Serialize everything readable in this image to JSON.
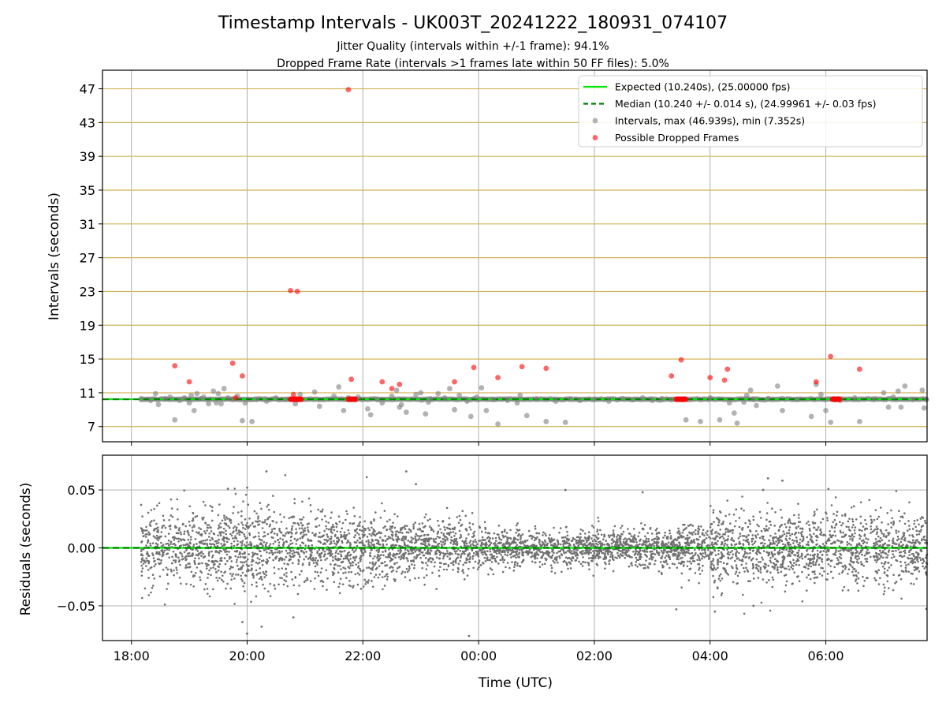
{
  "figure": {
    "title": "Timestamp Intervals - UK003T_20241222_180931_074107",
    "subtitle_line1": "Jitter Quality (intervals within +/-1 frame): 94.1%",
    "subtitle_line2": "Dropped Frame Rate (intervals >1 frames late within 50 FF files): 5.0%"
  },
  "colors": {
    "expected": "#00e600",
    "median": "#007f00",
    "intervals": "#808080",
    "dropped": "#ff0000",
    "grid": "#b0b0b0",
    "hgrid_top": "#d2b55b",
    "residual_points": "#707070"
  },
  "chart_data": [
    {
      "type": "scatter",
      "ylabel": "Intervals (seconds)",
      "xlim": [
        "17:30",
        "07:45"
      ],
      "ylim": [
        5.2,
        49.2
      ],
      "x_ticks": [
        "18:00",
        "20:00",
        "22:00",
        "00:00",
        "02:00",
        "04:00",
        "06:00"
      ],
      "y_ticks": [
        7,
        11,
        15,
        19,
        23,
        27,
        31,
        35,
        39,
        43,
        47
      ],
      "grid": true,
      "legend_position": "top-right",
      "expected_value": 10.24,
      "median_value": 10.24,
      "legend": [
        "Expected (10.240s), (25.00000 fps)",
        "Median (10.240 +/- 0.014 s), (24.99961 +/- 0.03 fps)",
        "Intervals, max (46.939s), min (7.352s)",
        "Possible Dropped Frames"
      ],
      "series": [
        {
          "name": "Intervals, max (46.939s), min (7.352s)",
          "points": [
            [
              "18:10",
              10.2
            ],
            [
              "18:20",
              10.1
            ],
            [
              "18:25",
              10.9
            ],
            [
              "18:28",
              9.6
            ],
            [
              "18:35",
              10.3
            ],
            [
              "18:40",
              10.5
            ],
            [
              "18:45",
              7.8
            ],
            [
              "18:50",
              10.1
            ],
            [
              "18:55",
              10.4
            ],
            [
              "19:00",
              9.8
            ],
            [
              "19:02",
              10.7
            ],
            [
              "19:05",
              8.9
            ],
            [
              "19:08",
              10.9
            ],
            [
              "19:12",
              10.3
            ],
            [
              "19:15",
              10.5
            ],
            [
              "19:20",
              9.7
            ],
            [
              "19:25",
              11.2
            ],
            [
              "19:28",
              9.8
            ],
            [
              "19:30",
              10.9
            ],
            [
              "19:33",
              9.7
            ],
            [
              "19:36",
              11.5
            ],
            [
              "19:40",
              10.4
            ],
            [
              "19:45",
              10.2
            ],
            [
              "19:50",
              10.6
            ],
            [
              "19:55",
              7.7
            ],
            [
              "19:58",
              9.8
            ],
            [
              "20:05",
              7.6
            ],
            [
              "20:10",
              10.2
            ],
            [
              "20:20",
              10.0
            ],
            [
              "20:30",
              10.4
            ],
            [
              "20:40",
              10.2
            ],
            [
              "20:50",
              9.7
            ],
            [
              "20:55",
              10.8
            ],
            [
              "21:10",
              11.1
            ],
            [
              "21:15",
              9.4
            ],
            [
              "21:30",
              10.6
            ],
            [
              "21:35",
              11.7
            ],
            [
              "21:40",
              8.9
            ],
            [
              "21:45",
              10.4
            ],
            [
              "21:55",
              10.5
            ],
            [
              "22:05",
              9.1
            ],
            [
              "22:08",
              8.4
            ],
            [
              "22:15",
              10.2
            ],
            [
              "22:20",
              9.8
            ],
            [
              "22:30",
              10.6
            ],
            [
              "22:35",
              11.3
            ],
            [
              "22:38",
              9.3
            ],
            [
              "22:40",
              9.6
            ],
            [
              "22:45",
              8.7
            ],
            [
              "22:55",
              10.8
            ],
            [
              "23:00",
              11.0
            ],
            [
              "23:05",
              8.5
            ],
            [
              "23:08",
              9.9
            ],
            [
              "23:10",
              10.3
            ],
            [
              "23:18",
              10.9
            ],
            [
              "23:25",
              10.4
            ],
            [
              "23:30",
              11.5
            ],
            [
              "23:35",
              9.0
            ],
            [
              "23:40",
              10.7
            ],
            [
              "23:48",
              10.0
            ],
            [
              "23:52",
              8.2
            ],
            [
              "23:58",
              10.5
            ],
            [
              "00:03",
              11.6
            ],
            [
              "00:08",
              8.9
            ],
            [
              "00:15",
              10.2
            ],
            [
              "00:20",
              7.3
            ],
            [
              "00:30",
              10.1
            ],
            [
              "00:40",
              9.8
            ],
            [
              "00:43",
              10.7
            ],
            [
              "00:50",
              8.3
            ],
            [
              "01:00",
              10.3
            ],
            [
              "01:10",
              7.6
            ],
            [
              "01:20",
              10.0
            ],
            [
              "01:30",
              7.5
            ],
            [
              "01:35",
              10.3
            ],
            [
              "01:45",
              10.1
            ],
            [
              "02:00",
              10.2
            ],
            [
              "02:15",
              10.0
            ],
            [
              "02:30",
              10.3
            ],
            [
              "02:40",
              10.2
            ],
            [
              "02:50",
              10.4
            ],
            [
              "03:00",
              10.1
            ],
            [
              "03:10",
              10.3
            ],
            [
              "03:20",
              10.2
            ],
            [
              "03:35",
              7.8
            ],
            [
              "03:50",
              7.6
            ],
            [
              "04:00",
              10.4
            ],
            [
              "04:10",
              7.8
            ],
            [
              "04:20",
              9.8
            ],
            [
              "04:25",
              8.6
            ],
            [
              "04:28",
              7.4
            ],
            [
              "04:35",
              9.9
            ],
            [
              "04:38",
              10.7
            ],
            [
              "04:42",
              11.3
            ],
            [
              "04:45",
              10.2
            ],
            [
              "04:48",
              9.5
            ],
            [
              "05:00",
              10.3
            ],
            [
              "05:10",
              11.8
            ],
            [
              "05:15",
              8.9
            ],
            [
              "05:30",
              10.2
            ],
            [
              "05:45",
              8.2
            ],
            [
              "05:50",
              12.0
            ],
            [
              "05:55",
              10.8
            ],
            [
              "06:00",
              8.9
            ],
            [
              "06:05",
              7.5
            ],
            [
              "06:15",
              10.1
            ],
            [
              "06:30",
              10.4
            ],
            [
              "06:35",
              7.6
            ],
            [
              "06:50",
              10.2
            ],
            [
              "07:00",
              11.0
            ],
            [
              "07:05",
              9.3
            ],
            [
              "07:10",
              10.5
            ],
            [
              "07:15",
              11.2
            ],
            [
              "07:18",
              9.3
            ],
            [
              "07:22",
              11.8
            ],
            [
              "07:30",
              10.2
            ],
            [
              "07:40",
              11.3
            ],
            [
              "07:42",
              9.2
            ],
            [
              "07:44",
              10.2
            ]
          ]
        },
        {
          "name": "Possible Dropped Frames",
          "points": [
            [
              "18:45",
              14.2
            ],
            [
              "19:00",
              12.3
            ],
            [
              "19:45",
              14.5
            ],
            [
              "19:48",
              10.4
            ],
            [
              "19:55",
              13.0
            ],
            [
              "20:45",
              23.1
            ],
            [
              "20:52",
              23.0
            ],
            [
              "20:48",
              10.8
            ],
            [
              "21:45",
              46.9
            ],
            [
              "21:48",
              12.6
            ],
            [
              "22:20",
              12.3
            ],
            [
              "22:30",
              11.5
            ],
            [
              "22:38",
              12.0
            ],
            [
              "23:35",
              12.3
            ],
            [
              "23:55",
              14.0
            ],
            [
              "00:20",
              12.8
            ],
            [
              "00:45",
              14.1
            ],
            [
              "01:10",
              13.9
            ],
            [
              "03:20",
              13.0
            ],
            [
              "03:30",
              14.9
            ],
            [
              "04:00",
              12.8
            ],
            [
              "04:15",
              12.5
            ],
            [
              "04:18",
              13.8
            ],
            [
              "05:50",
              12.3
            ],
            [
              "06:05",
              15.3
            ],
            [
              "06:35",
              13.8
            ]
          ]
        }
      ],
      "dropped_clusters": [
        {
          "from": "20:45",
          "to": "20:57",
          "value": 10.24
        },
        {
          "from": "21:45",
          "to": "21:53",
          "value": 10.24
        },
        {
          "from": "03:25",
          "to": "03:35",
          "value": 10.24
        },
        {
          "from": "06:07",
          "to": "06:15",
          "value": 10.24
        }
      ]
    },
    {
      "type": "scatter",
      "xlabel": "Time (UTC)",
      "ylabel": "Residuals (seconds)",
      "xlim": [
        "17:30",
        "07:45"
      ],
      "ylim": [
        -0.08,
        0.08
      ],
      "x_ticks": [
        "18:00",
        "20:00",
        "22:00",
        "00:00",
        "02:00",
        "04:00",
        "06:00"
      ],
      "y_ticks": [
        0.05,
        0.0,
        -0.05
      ],
      "y_tick_labels": [
        "0.05",
        "0.00",
        "−0.05"
      ],
      "grid": true,
      "expected_value": 0.0,
      "median_value": 0.0,
      "points_count": 5000,
      "residual_spread": [
        {
          "from": "18:10",
          "to": "20:30",
          "std": 0.017
        },
        {
          "from": "20:30",
          "to": "22:30",
          "std": 0.016
        },
        {
          "from": "22:30",
          "to": "00:00",
          "std": 0.012
        },
        {
          "from": "00:00",
          "to": "03:30",
          "std": 0.008
        },
        {
          "from": "03:30",
          "to": "04:00",
          "std": 0.01
        },
        {
          "from": "04:00",
          "to": "05:00",
          "std": 0.017
        },
        {
          "from": "05:00",
          "to": "07:45",
          "std": 0.015
        }
      ],
      "outliers": [
        [
          "20:20",
          0.066
        ],
        [
          "22:45",
          0.066
        ],
        [
          "22:55",
          0.055
        ],
        [
          "19:40",
          0.051
        ],
        [
          "20:00",
          0.052
        ],
        [
          "05:00",
          0.06
        ],
        [
          "05:15",
          0.058
        ],
        [
          "01:30",
          0.05
        ],
        [
          "02:50",
          0.048
        ],
        [
          "04:55",
          0.05
        ],
        [
          "19:55",
          -0.064
        ],
        [
          "20:00",
          -0.074
        ],
        [
          "20:15",
          -0.068
        ],
        [
          "23:50",
          -0.076
        ],
        [
          "20:48",
          -0.06
        ],
        [
          "03:25",
          -0.053
        ],
        [
          "04:05",
          -0.055
        ],
        [
          "04:45",
          -0.05
        ]
      ]
    }
  ]
}
